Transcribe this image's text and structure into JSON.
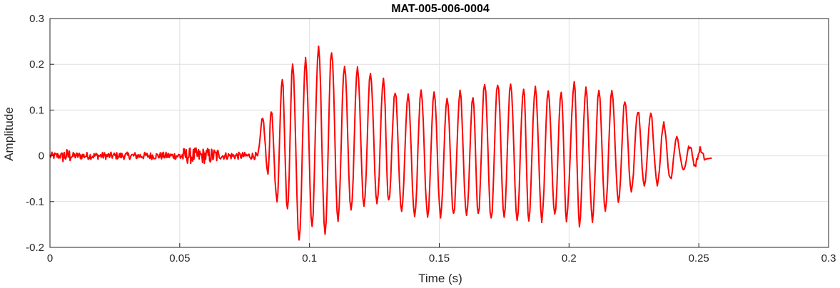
{
  "chart_data": {
    "type": "line",
    "title": "MAT-005-006-0004",
    "xlabel": "Time (s)",
    "ylabel": "Amplitude",
    "xlim": [
      0,
      0.3
    ],
    "ylim": [
      -0.2,
      0.3
    ],
    "xticks": [
      0,
      0.05,
      0.1,
      0.15,
      0.2,
      0.25,
      0.3
    ],
    "xtick_labels": [
      "0",
      "0.05",
      "0.1",
      "0.15",
      "0.2",
      "0.25",
      "0.3"
    ],
    "yticks": [
      -0.2,
      -0.1,
      0,
      0.1,
      0.2,
      0.3
    ],
    "ytick_labels": [
      "-0.2",
      "-0.1",
      "0",
      "0.1",
      "0.2",
      "0.3"
    ],
    "grid": true,
    "series": [
      {
        "color": "#ff0000",
        "duration": 0.255,
        "segments": [
          {
            "t_start": 0.0,
            "t_end": 0.08,
            "kind": "noise",
            "amplitude": 0.008
          },
          {
            "t_start": 0.08,
            "t_end": 0.255,
            "kind": "oscillation",
            "period": 0.0049,
            "peaks": [
              [
                0.082,
                0.08
              ],
              [
                0.0852,
                0.1
              ],
              [
                0.0895,
                0.17
              ],
              [
                0.0935,
                0.2
              ],
              [
                0.0985,
                0.21
              ],
              [
                0.1035,
                0.24
              ],
              [
                0.1085,
                0.23
              ],
              [
                0.1135,
                0.2
              ],
              [
                0.1185,
                0.19
              ],
              [
                0.1235,
                0.18
              ],
              [
                0.1285,
                0.17
              ],
              [
                0.133,
                0.14
              ],
              [
                0.138,
                0.13
              ],
              [
                0.143,
                0.14
              ],
              [
                0.148,
                0.14
              ],
              [
                0.153,
                0.13
              ],
              [
                0.158,
                0.14
              ],
              [
                0.163,
                0.13
              ],
              [
                0.1675,
                0.16
              ],
              [
                0.1725,
                0.16
              ],
              [
                0.1775,
                0.16
              ],
              [
                0.1825,
                0.15
              ],
              [
                0.187,
                0.15
              ],
              [
                0.192,
                0.14
              ],
              [
                0.197,
                0.14
              ],
              [
                0.202,
                0.16
              ],
              [
                0.2065,
                0.15
              ],
              [
                0.2115,
                0.14
              ],
              [
                0.2165,
                0.14
              ],
              [
                0.2215,
                0.12
              ],
              [
                0.2265,
                0.1
              ],
              [
                0.2315,
                0.09
              ],
              [
                0.2365,
                0.07
              ],
              [
                0.2415,
                0.04
              ],
              [
                0.2465,
                0.02
              ],
              [
                0.2505,
                0.015
              ]
            ],
            "troughs": [
              [
                0.084,
                -0.04
              ],
              [
                0.0875,
                -0.1
              ],
              [
                0.0915,
                -0.12
              ],
              [
                0.096,
                -0.18
              ],
              [
                0.101,
                -0.15
              ],
              [
                0.106,
                -0.17
              ],
              [
                0.111,
                -0.14
              ],
              [
                0.116,
                -0.12
              ],
              [
                0.121,
                -0.11
              ],
              [
                0.126,
                -0.11
              ],
              [
                0.1305,
                -0.1
              ],
              [
                0.1355,
                -0.12
              ],
              [
                0.1405,
                -0.13
              ],
              [
                0.1455,
                -0.13
              ],
              [
                0.1505,
                -0.13
              ],
              [
                0.1555,
                -0.13
              ],
              [
                0.1605,
                -0.13
              ],
              [
                0.165,
                -0.13
              ],
              [
                0.17,
                -0.14
              ],
              [
                0.175,
                -0.13
              ],
              [
                0.18,
                -0.14
              ],
              [
                0.1845,
                -0.14
              ],
              [
                0.1895,
                -0.14
              ],
              [
                0.1945,
                -0.13
              ],
              [
                0.199,
                -0.14
              ],
              [
                0.204,
                -0.15
              ],
              [
                0.209,
                -0.14
              ],
              [
                0.214,
                -0.12
              ],
              [
                0.219,
                -0.1
              ],
              [
                0.224,
                -0.08
              ],
              [
                0.229,
                -0.07
              ],
              [
                0.234,
                -0.06
              ],
              [
                0.239,
                -0.05
              ],
              [
                0.244,
                -0.03
              ],
              [
                0.2485,
                -0.02
              ],
              [
                0.253,
                -0.01
              ]
            ]
          }
        ]
      }
    ]
  }
}
